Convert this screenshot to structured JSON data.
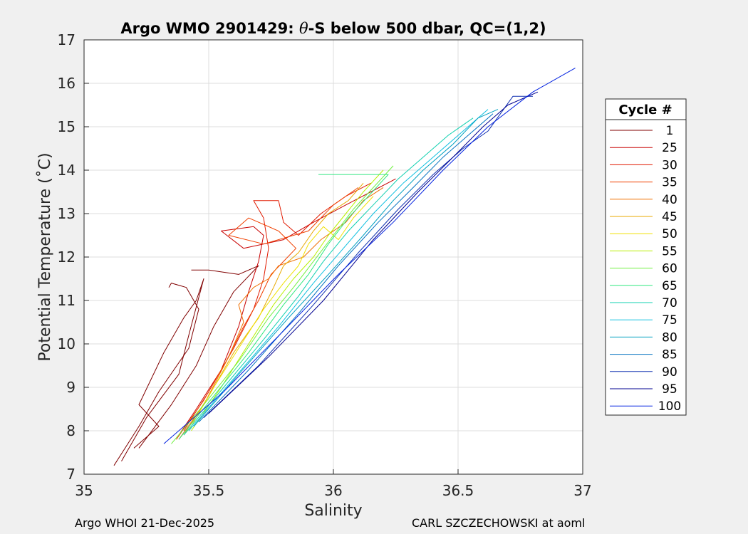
{
  "chart_data": {
    "type": "line",
    "title_prefix": "Argo WMO 2901429: ",
    "title_theta": "θ",
    "title_suffix": "-S below 500 dbar,  QC=(1,2)",
    "xlabel": "Salinity",
    "ylabel": "Potential Temperature (˚C)",
    "xlim": [
      35,
      37
    ],
    "ylim": [
      7,
      17
    ],
    "xticks": [
      "35",
      "35.5",
      "36",
      "36.5",
      "37"
    ],
    "yticks": [
      "7",
      "8",
      "9",
      "10",
      "11",
      "12",
      "13",
      "14",
      "15",
      "16",
      "17"
    ],
    "grid": true,
    "legend": {
      "title": "Cycle #",
      "placement": "right",
      "entries": [
        {
          "label": "1",
          "color": "#800000"
        },
        {
          "label": "25",
          "color": "#c80000"
        },
        {
          "label": "30",
          "color": "#e11a00"
        },
        {
          "label": "35",
          "color": "#f04000"
        },
        {
          "label": "40",
          "color": "#f07000"
        },
        {
          "label": "45",
          "color": "#e8a800"
        },
        {
          "label": "50",
          "color": "#f0e000"
        },
        {
          "label": "55",
          "color": "#b8f000"
        },
        {
          "label": "60",
          "color": "#70f040"
        },
        {
          "label": "65",
          "color": "#30e880"
        },
        {
          "label": "70",
          "color": "#10d0b0"
        },
        {
          "label": "75",
          "color": "#10c0e0"
        },
        {
          "label": "80",
          "color": "#00a0c0"
        },
        {
          "label": "85",
          "color": "#0070c0"
        },
        {
          "label": "90",
          "color": "#1030b0"
        },
        {
          "label": "95",
          "color": "#000090"
        },
        {
          "label": "100",
          "color": "#0020e0"
        }
      ]
    },
    "series": [
      {
        "color": "#800000",
        "points": [
          [
            35.12,
            7.2
          ],
          [
            35.22,
            8.1
          ],
          [
            35.3,
            8.9
          ],
          [
            35.42,
            9.9
          ],
          [
            35.46,
            10.8
          ],
          [
            35.41,
            11.3
          ],
          [
            35.35,
            11.4
          ],
          [
            35.34,
            11.3
          ]
        ]
      },
      {
        "color": "#800000",
        "points": [
          [
            35.15,
            7.3
          ],
          [
            35.25,
            8.3
          ],
          [
            35.38,
            9.3
          ],
          [
            35.42,
            10.2
          ],
          [
            35.48,
            11.5
          ],
          [
            35.45,
            11.0
          ],
          [
            35.4,
            10.6
          ],
          [
            35.32,
            9.8
          ],
          [
            35.22,
            8.6
          ],
          [
            35.3,
            8.1
          ],
          [
            35.2,
            7.6
          ]
        ]
      },
      {
        "color": "#800000",
        "points": [
          [
            35.22,
            7.6
          ],
          [
            35.35,
            8.6
          ],
          [
            35.45,
            9.5
          ],
          [
            35.52,
            10.4
          ],
          [
            35.6,
            11.2
          ],
          [
            35.7,
            11.8
          ],
          [
            35.62,
            11.6
          ],
          [
            35.5,
            11.7
          ],
          [
            35.43,
            11.7
          ]
        ]
      },
      {
        "color": "#c80000",
        "points": [
          [
            35.38,
            7.9
          ],
          [
            35.45,
            8.5
          ],
          [
            35.55,
            9.4
          ],
          [
            35.62,
            10.4
          ],
          [
            35.66,
            11.2
          ],
          [
            35.7,
            11.9
          ],
          [
            35.72,
            12.5
          ],
          [
            35.68,
            12.7
          ],
          [
            35.55,
            12.6
          ],
          [
            35.64,
            12.2
          ],
          [
            35.8,
            12.4
          ],
          [
            35.92,
            12.8
          ],
          [
            36.05,
            13.2
          ],
          [
            36.15,
            13.5
          ],
          [
            36.25,
            13.8
          ]
        ]
      },
      {
        "color": "#e11a00",
        "points": [
          [
            35.4,
            8.0
          ],
          [
            35.5,
            8.9
          ],
          [
            35.6,
            9.9
          ],
          [
            35.68,
            10.8
          ],
          [
            35.72,
            11.5
          ],
          [
            35.74,
            12.2
          ],
          [
            35.72,
            12.9
          ],
          [
            35.68,
            13.3
          ],
          [
            35.78,
            13.3
          ],
          [
            35.8,
            12.8
          ],
          [
            35.86,
            12.5
          ],
          [
            35.95,
            13.0
          ],
          [
            36.05,
            13.4
          ],
          [
            36.15,
            13.7
          ]
        ]
      },
      {
        "color": "#f04000",
        "points": [
          [
            35.37,
            7.8
          ],
          [
            35.48,
            8.7
          ],
          [
            35.57,
            9.6
          ],
          [
            35.64,
            10.4
          ],
          [
            35.7,
            11.0
          ],
          [
            35.75,
            11.6
          ],
          [
            35.8,
            11.9
          ],
          [
            35.85,
            12.2
          ],
          [
            35.78,
            12.6
          ],
          [
            35.66,
            12.9
          ],
          [
            35.58,
            12.5
          ],
          [
            35.72,
            12.3
          ],
          [
            35.9,
            12.6
          ],
          [
            36.0,
            13.2
          ],
          [
            36.1,
            13.6
          ]
        ]
      },
      {
        "color": "#f07000",
        "points": [
          [
            35.38,
            7.8
          ],
          [
            35.48,
            8.6
          ],
          [
            35.58,
            9.7
          ],
          [
            35.64,
            10.5
          ],
          [
            35.62,
            10.9
          ],
          [
            35.68,
            11.3
          ],
          [
            35.74,
            11.5
          ],
          [
            35.78,
            11.8
          ],
          [
            35.88,
            12.0
          ],
          [
            35.95,
            12.4
          ],
          [
            36.05,
            12.8
          ],
          [
            36.12,
            13.3
          ],
          [
            36.2,
            13.6
          ]
        ]
      },
      {
        "color": "#e8a800",
        "points": [
          [
            35.4,
            7.9
          ],
          [
            35.5,
            8.8
          ],
          [
            35.6,
            9.8
          ],
          [
            35.7,
            10.6
          ],
          [
            35.76,
            11.3
          ],
          [
            35.8,
            11.8
          ],
          [
            35.86,
            12.1
          ],
          [
            35.92,
            12.6
          ],
          [
            35.98,
            13.0
          ],
          [
            36.06,
            13.3
          ],
          [
            36.12,
            13.7
          ]
        ]
      },
      {
        "color": "#f0e000",
        "points": [
          [
            35.42,
            8.0
          ],
          [
            35.52,
            9.0
          ],
          [
            35.62,
            9.9
          ],
          [
            35.72,
            10.8
          ],
          [
            35.8,
            11.4
          ],
          [
            35.86,
            11.8
          ],
          [
            35.9,
            12.3
          ],
          [
            35.96,
            12.7
          ],
          [
            36.02,
            12.4
          ],
          [
            36.08,
            12.9
          ],
          [
            36.16,
            13.4
          ]
        ]
      },
      {
        "color": "#b8f000",
        "points": [
          [
            35.43,
            8.0
          ],
          [
            35.55,
            9.0
          ],
          [
            35.66,
            10.0
          ],
          [
            35.76,
            10.9
          ],
          [
            35.84,
            11.5
          ],
          [
            35.92,
            12.0
          ],
          [
            35.98,
            12.5
          ],
          [
            36.05,
            13.0
          ],
          [
            36.12,
            13.5
          ],
          [
            36.2,
            14.0
          ]
        ]
      },
      {
        "color": "#70f040",
        "points": [
          [
            35.35,
            7.7
          ],
          [
            35.48,
            8.6
          ],
          [
            35.62,
            9.6
          ],
          [
            35.74,
            10.6
          ],
          [
            35.84,
            11.3
          ],
          [
            35.92,
            11.9
          ],
          [
            36.0,
            12.5
          ],
          [
            36.08,
            13.1
          ],
          [
            36.16,
            13.6
          ],
          [
            36.24,
            14.1
          ]
        ]
      },
      {
        "color": "#30e880",
        "points": [
          [
            35.38,
            7.8
          ],
          [
            35.52,
            8.8
          ],
          [
            35.66,
            9.8
          ],
          [
            35.8,
            10.9
          ],
          [
            35.9,
            11.6
          ],
          [
            35.98,
            12.3
          ],
          [
            36.06,
            12.9
          ],
          [
            36.14,
            13.4
          ],
          [
            36.22,
            13.9
          ],
          [
            36.05,
            13.9
          ],
          [
            35.94,
            13.9
          ]
        ]
      },
      {
        "color": "#10d0b0",
        "points": [
          [
            35.4,
            7.9
          ],
          [
            35.56,
            9.0
          ],
          [
            35.72,
            10.1
          ],
          [
            35.86,
            11.1
          ],
          [
            35.96,
            11.9
          ],
          [
            36.06,
            12.6
          ],
          [
            36.16,
            13.2
          ],
          [
            36.26,
            13.8
          ],
          [
            36.36,
            14.3
          ],
          [
            36.46,
            14.8
          ],
          [
            36.56,
            15.2
          ]
        ]
      },
      {
        "color": "#10c0e0",
        "points": [
          [
            35.42,
            8.0
          ],
          [
            35.6,
            9.2
          ],
          [
            35.78,
            10.4
          ],
          [
            35.92,
            11.4
          ],
          [
            36.04,
            12.2
          ],
          [
            36.16,
            13.0
          ],
          [
            36.28,
            13.7
          ],
          [
            36.4,
            14.3
          ],
          [
            36.52,
            14.9
          ],
          [
            36.62,
            15.4
          ]
        ]
      },
      {
        "color": "#00a0c0",
        "points": [
          [
            35.44,
            8.1
          ],
          [
            35.62,
            9.3
          ],
          [
            35.82,
            10.6
          ],
          [
            35.98,
            11.6
          ],
          [
            36.12,
            12.5
          ],
          [
            36.24,
            13.3
          ],
          [
            36.36,
            14.0
          ],
          [
            36.48,
            14.6
          ],
          [
            36.58,
            15.2
          ],
          [
            36.66,
            15.4
          ]
        ]
      },
      {
        "color": "#0070c0",
        "points": [
          [
            35.46,
            8.2
          ],
          [
            35.66,
            9.4
          ],
          [
            35.86,
            10.7
          ],
          [
            36.02,
            11.8
          ],
          [
            36.18,
            12.8
          ],
          [
            36.32,
            13.6
          ],
          [
            36.44,
            14.3
          ],
          [
            36.56,
            14.9
          ],
          [
            36.64,
            15.3
          ]
        ]
      },
      {
        "color": "#1030b0",
        "points": [
          [
            35.48,
            8.3
          ],
          [
            35.7,
            9.5
          ],
          [
            35.92,
            10.9
          ],
          [
            36.1,
            12.1
          ],
          [
            36.26,
            13.1
          ],
          [
            36.4,
            13.9
          ],
          [
            36.52,
            14.5
          ],
          [
            36.62,
            14.9
          ],
          [
            36.72,
            15.7
          ],
          [
            36.8,
            15.7
          ]
        ]
      },
      {
        "color": "#000090",
        "points": [
          [
            35.5,
            8.4
          ],
          [
            35.74,
            9.7
          ],
          [
            35.96,
            11.0
          ],
          [
            36.16,
            12.4
          ],
          [
            36.34,
            13.5
          ],
          [
            36.48,
            14.3
          ],
          [
            36.6,
            15.0
          ],
          [
            36.7,
            15.5
          ],
          [
            36.82,
            15.8
          ]
        ]
      },
      {
        "color": "#0020e0",
        "points": [
          [
            35.32,
            7.7
          ],
          [
            35.56,
            8.9
          ],
          [
            35.8,
            10.3
          ],
          [
            36.02,
            11.6
          ],
          [
            36.24,
            12.8
          ],
          [
            36.44,
            14.0
          ],
          [
            36.62,
            15.0
          ],
          [
            36.8,
            15.8
          ],
          [
            36.97,
            16.35
          ]
        ]
      }
    ]
  },
  "footer": {
    "left": "Argo WHOI 21-Dec-2025",
    "right": "CARL SZCZECHOWSKI at aoml"
  }
}
